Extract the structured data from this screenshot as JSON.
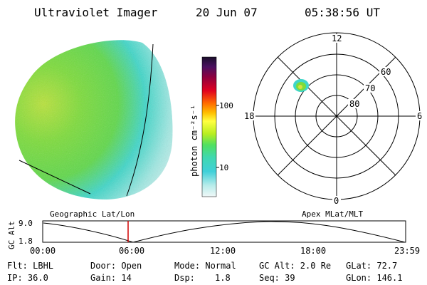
{
  "header": {
    "instrument": "Ultraviolet Imager",
    "date": "20 Jun 07",
    "time": "05:38:56 UT"
  },
  "colorbar": {
    "unit": "photon cm⁻²s⁻¹",
    "ticks": [
      "100",
      "10"
    ]
  },
  "polar": {
    "mlt_labels": [
      "12",
      "18",
      "6",
      "0"
    ],
    "mlat_labels": [
      "60",
      "70",
      "80"
    ]
  },
  "timeline": {
    "left_caption": "Geographic Lat/Lon",
    "right_caption": "Apex MLat/MLT",
    "y_axis_label": "GC Alt",
    "y_ticks": [
      "9.0",
      "1.8"
    ],
    "x_ticks": [
      "00:00",
      "06:00",
      "12:00",
      "18:00",
      "23:59"
    ],
    "current_time_marker": "05:38:56"
  },
  "info": {
    "filter": "Flt: LBHL",
    "ip": "IP: 36.0",
    "door": "Door: Open",
    "gain": "Gain: 14",
    "mode": "Mode: Normal",
    "dsp_label": "Dsp:",
    "dsp_value": "1.8",
    "gc_alt": "GC Alt: 2.0 Re",
    "seq": "Seq: 39",
    "glat": "GLat: 72.7",
    "glon": "GLon: 146.1"
  },
  "colors": {
    "earth_green": "#7ddc3a",
    "earth_cyan": "#3fd6c8",
    "earth_pale": "#c9f0ee",
    "time_marker": "#d00000"
  }
}
